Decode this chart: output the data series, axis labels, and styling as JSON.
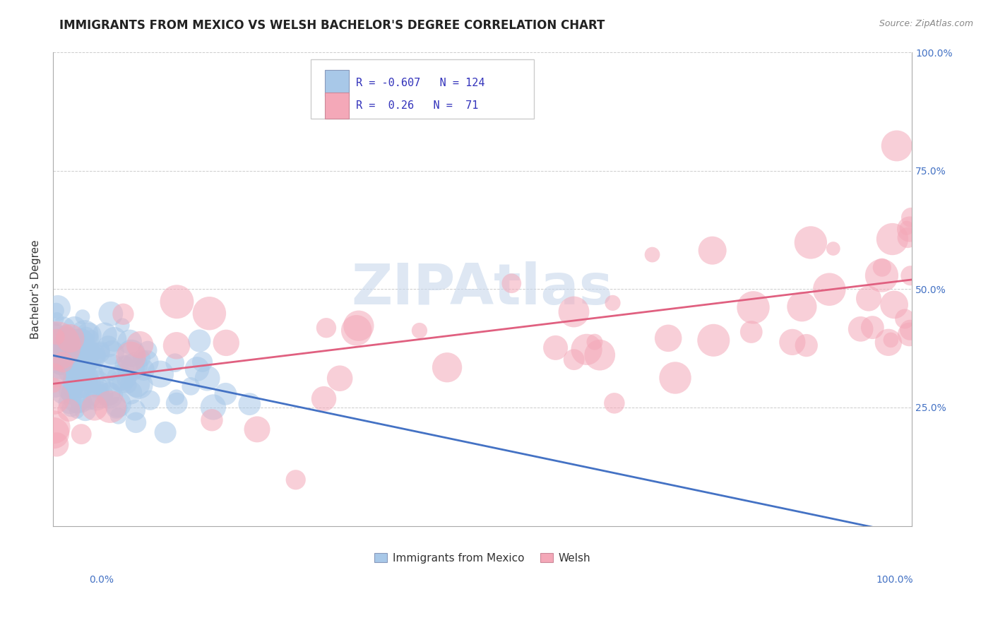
{
  "title": "IMMIGRANTS FROM MEXICO VS WELSH BACHELOR'S DEGREE CORRELATION CHART",
  "source": "Source: ZipAtlas.com",
  "ylabel": "Bachelor's Degree",
  "series1_name": "Immigrants from Mexico",
  "series2_name": "Welsh",
  "series1_R": -0.607,
  "series1_N": 124,
  "series2_R": 0.26,
  "series2_N": 71,
  "series1_color": "#a8c8e8",
  "series2_color": "#f4a8b8",
  "series1_line_color": "#4472c4",
  "series2_line_color": "#e06080",
  "legend_color1": "#a8c8e8",
  "legend_color2": "#f4a8b8",
  "background_color": "#ffffff",
  "grid_color": "#cccccc",
  "title_color": "#222222",
  "label_color": "#4472c4",
  "legend_text_color": "#3333cc",
  "xlim": [
    0.0,
    1.0
  ],
  "ylim": [
    0.0,
    1.0
  ],
  "trend1_x0": 0.0,
  "trend1_y0": 0.36,
  "trend1_x1": 1.0,
  "trend1_y1": -0.02,
  "trend2_x0": 0.0,
  "trend2_y0": 0.3,
  "trend2_x1": 1.0,
  "trend2_y1": 0.52
}
